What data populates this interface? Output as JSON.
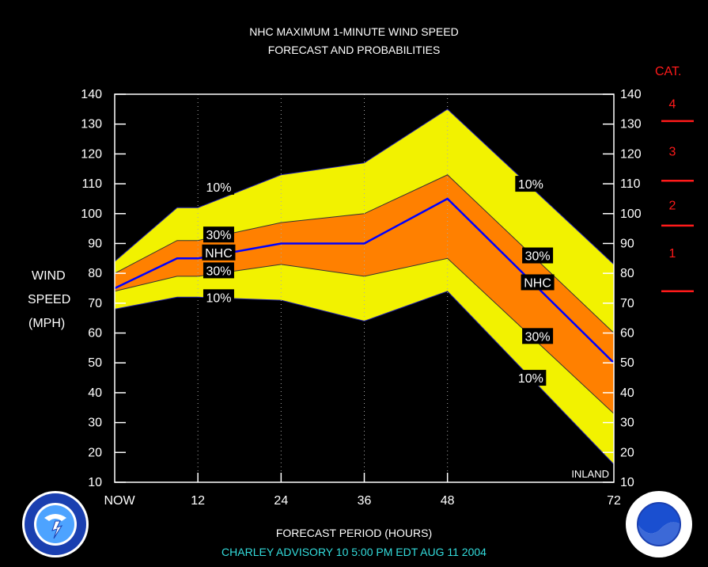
{
  "title_line1": "NHC MAXIMUM 1-MINUTE WIND SPEED",
  "title_line2": "FORECAST AND PROBABILITIES",
  "y_label": [
    "WIND",
    "SPEED",
    "(MPH)"
  ],
  "x_label": "FORECAST PERIOD (HOURS)",
  "advisory": "CHARLEY    ADVISORY  10 5:00  PM  EDT  AUG  11  2004",
  "inland_label": "INLAND",
  "colors": {
    "band10": "#f2f200",
    "band30": "#ff8000",
    "nhc_line": "#0000ff",
    "plot_border": "#ffffff",
    "category": "#ff1a1a",
    "advisory": "#33dddd"
  },
  "categories": {
    "header": "CAT.",
    "labels": [
      "4",
      "3",
      "2",
      "1"
    ],
    "label_values": [
      137,
      121,
      103,
      87
    ],
    "thresholds": [
      131,
      111,
      96,
      74
    ]
  },
  "chart_data": {
    "type": "area",
    "title": "NHC MAXIMUM 1-MINUTE WIND SPEED FORECAST AND PROBABILITIES",
    "xlabel": "FORECAST PERIOD (HOURS)",
    "ylabel": "WIND SPEED (MPH)",
    "x_ticks": [
      0,
      12,
      24,
      36,
      48,
      72
    ],
    "x_tick_labels": [
      "NOW",
      "12",
      "24",
      "36",
      "48",
      "72"
    ],
    "y_ticks": [
      10,
      20,
      30,
      40,
      50,
      60,
      70,
      80,
      90,
      100,
      110,
      120,
      130,
      140
    ],
    "xlim": [
      0,
      72
    ],
    "ylim": [
      10,
      140
    ],
    "grid": "vertical dotted at 12, 24, 36, 48",
    "x": [
      0,
      9,
      12,
      24,
      36,
      48,
      72
    ],
    "series": [
      {
        "name": "10%",
        "values_upper": [
          84,
          102,
          102,
          113,
          117,
          135,
          83
        ],
        "values_lower": [
          68,
          72,
          72,
          71,
          64,
          74,
          16
        ]
      },
      {
        "name": "30%",
        "values_upper": [
          80,
          91,
          91,
          97,
          100,
          113,
          60
        ],
        "values_lower": [
          74,
          79,
          79,
          83,
          79,
          85,
          33
        ]
      },
      {
        "name": "NHC",
        "values": [
          75,
          85,
          85,
          90,
          90,
          105,
          50
        ]
      }
    ],
    "band_x": [
      0,
      9,
      12,
      24,
      36,
      48,
      72
    ],
    "labels": [
      {
        "text": "10%",
        "x": 15,
        "y": 109
      },
      {
        "text": "30%",
        "x": 15,
        "y": 93
      },
      {
        "text": "NHC",
        "x": 15,
        "y": 87
      },
      {
        "text": "30%",
        "x": 15,
        "y": 81
      },
      {
        "text": "10%",
        "x": 15,
        "y": 72
      },
      {
        "text": "10%",
        "x": 60,
        "y": 110
      },
      {
        "text": "30%",
        "x": 61,
        "y": 86
      },
      {
        "text": "NHC",
        "x": 61,
        "y": 77
      },
      {
        "text": "30%",
        "x": 61,
        "y": 59
      },
      {
        "text": "10%",
        "x": 60,
        "y": 45
      }
    ]
  }
}
